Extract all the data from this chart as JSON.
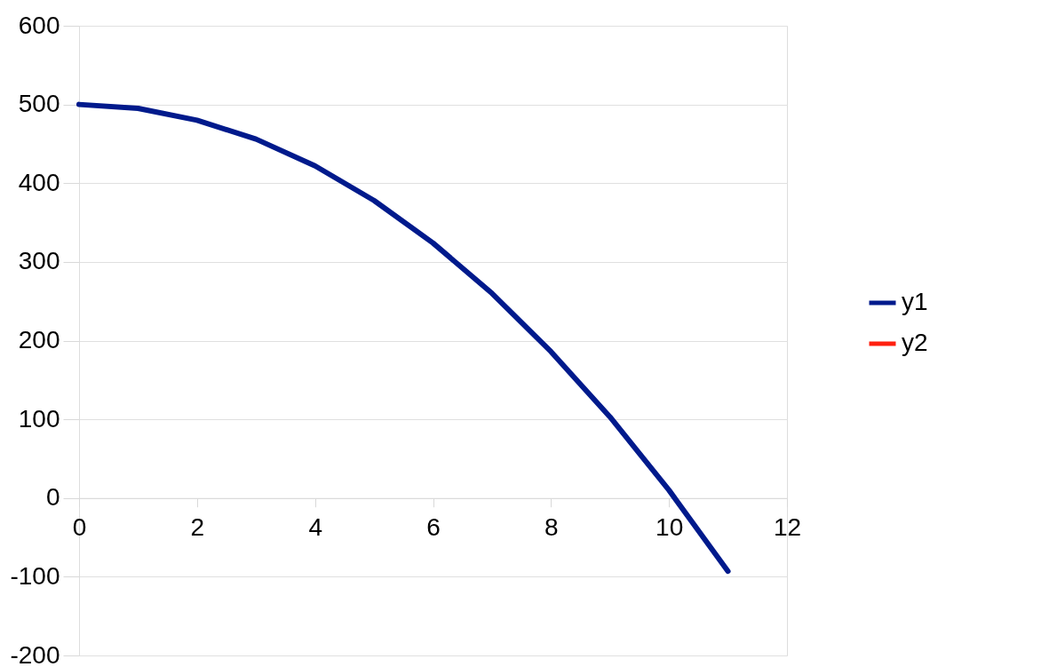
{
  "chart_data": {
    "type": "line",
    "x": [
      0,
      1,
      2,
      3,
      4,
      5,
      6,
      7,
      8,
      9,
      10,
      11
    ],
    "series": [
      {
        "name": "y1",
        "color": "#001a8c",
        "values": [
          500,
          495,
          480,
          456,
          422,
          378,
          324,
          260,
          186,
          103,
          10,
          -93
        ]
      },
      {
        "name": "y2",
        "color": "#ff2010",
        "values": [
          null,
          null,
          null,
          null,
          null,
          null,
          null,
          null,
          null,
          null,
          null,
          null
        ]
      }
    ],
    "xlim": [
      0,
      12
    ],
    "xticks": [
      0,
      2,
      4,
      6,
      8,
      10,
      12
    ],
    "ylim": [
      -200,
      600
    ],
    "yticks": [
      -200,
      -100,
      0,
      100,
      200,
      300,
      400,
      500,
      600
    ],
    "grid": "y",
    "legend": "right",
    "line_style": "solid",
    "marker": "none"
  }
}
